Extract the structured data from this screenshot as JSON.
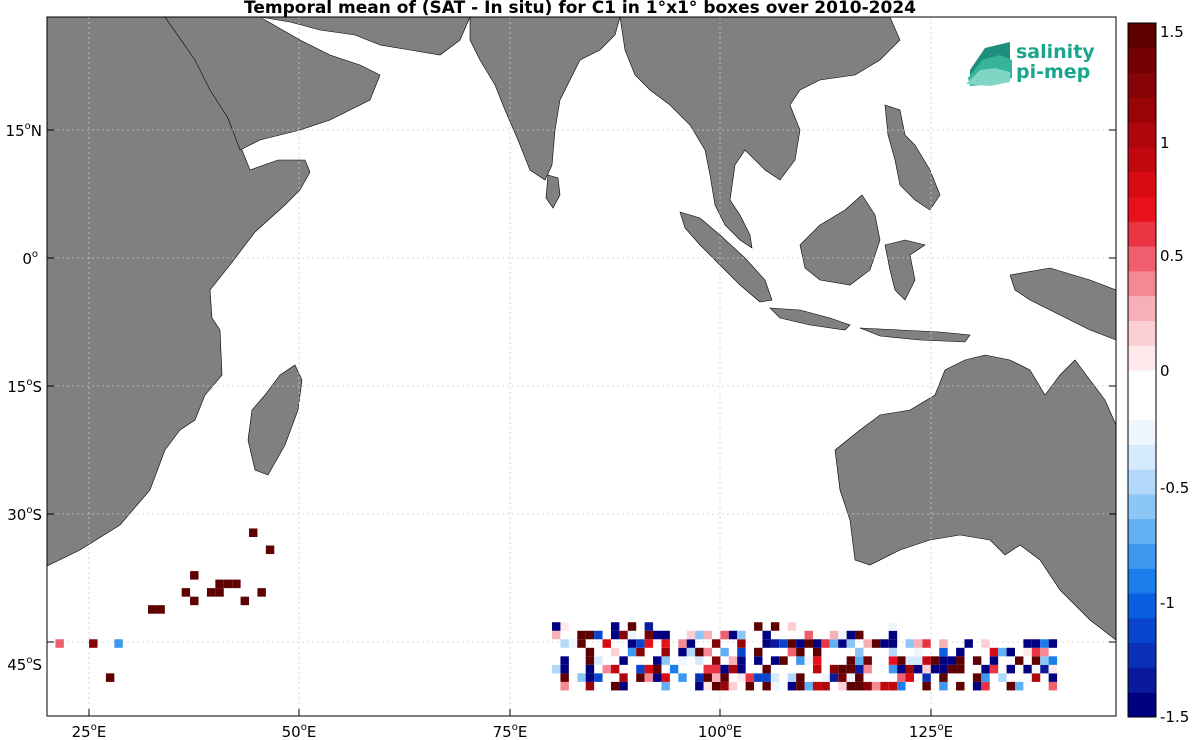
{
  "title": "Temporal mean of (SAT - In situ) for C1 in 1°x1° boxes over 2010-2024",
  "logo": {
    "line1": "salinity",
    "line2": "pi-mep"
  },
  "map": {
    "lon_range": [
      20,
      147
    ],
    "lat_range": [
      -52,
      30
    ],
    "longitude_ticks": [
      "25",
      "50",
      "75",
      "100",
      "125"
    ],
    "latitude_ticks": [
      "15",
      "0",
      "15",
      "30",
      "45"
    ],
    "latitude_hemispheres": [
      "N",
      "",
      "S",
      "S",
      "S"
    ],
    "degree_symbol": "o",
    "lon_suffix": "E"
  },
  "colorbar": {
    "range": [
      -1.5,
      1.5
    ],
    "ticks": [
      "1.5",
      "1",
      "0.5",
      "0",
      "-0.5",
      "-1",
      "-1.5"
    ],
    "colors": [
      "#000080",
      "#0a1a9c",
      "#0b2fb5",
      "#0a45cd",
      "#0a5fe0",
      "#1b7ceb",
      "#3d98f0",
      "#62b0f4",
      "#8bc6f7",
      "#b2d9fa",
      "#d6eafd",
      "#f0f6fe",
      "#ffffff",
      "#ffffff",
      "#fde8ea",
      "#fbcfd4",
      "#f8b0b7",
      "#f48893",
      "#ef5f6d",
      "#ea3444",
      "#e8101b",
      "#d80a12",
      "#c2080f",
      "#ad060c",
      "#990409",
      "#860306",
      "#730103",
      "#5e0000"
    ]
  },
  "colors": {
    "land": "#808080",
    "ocean": "#ffffff",
    "grid": "#cccccc"
  },
  "data": {
    "west_cells": [
      [
        44,
        -31,
        1.6
      ],
      [
        46,
        -33,
        1.6
      ],
      [
        37,
        -36,
        1.6
      ],
      [
        40,
        -37,
        1.6
      ],
      [
        41,
        -37,
        1.6
      ],
      [
        42,
        -37,
        1.6
      ],
      [
        36,
        -38,
        1.6
      ],
      [
        39,
        -38,
        1.6
      ],
      [
        40,
        -38,
        1.6
      ],
      [
        45,
        -38,
        1.6
      ],
      [
        37,
        -39,
        1.6
      ],
      [
        43,
        -39,
        1.6
      ],
      [
        32,
        -40,
        1.6
      ],
      [
        33,
        -40,
        1.6
      ],
      [
        21,
        -44,
        0.45
      ],
      [
        25,
        -44,
        1.2
      ],
      [
        28,
        -44,
        -0.8
      ],
      [
        27,
        -48,
        1.6
      ]
    ],
    "southern_band": "dense 1°x1° cells between 80°E and 140°E, 42°S to 50°S, values ranging -1.5 to 1.5"
  }
}
